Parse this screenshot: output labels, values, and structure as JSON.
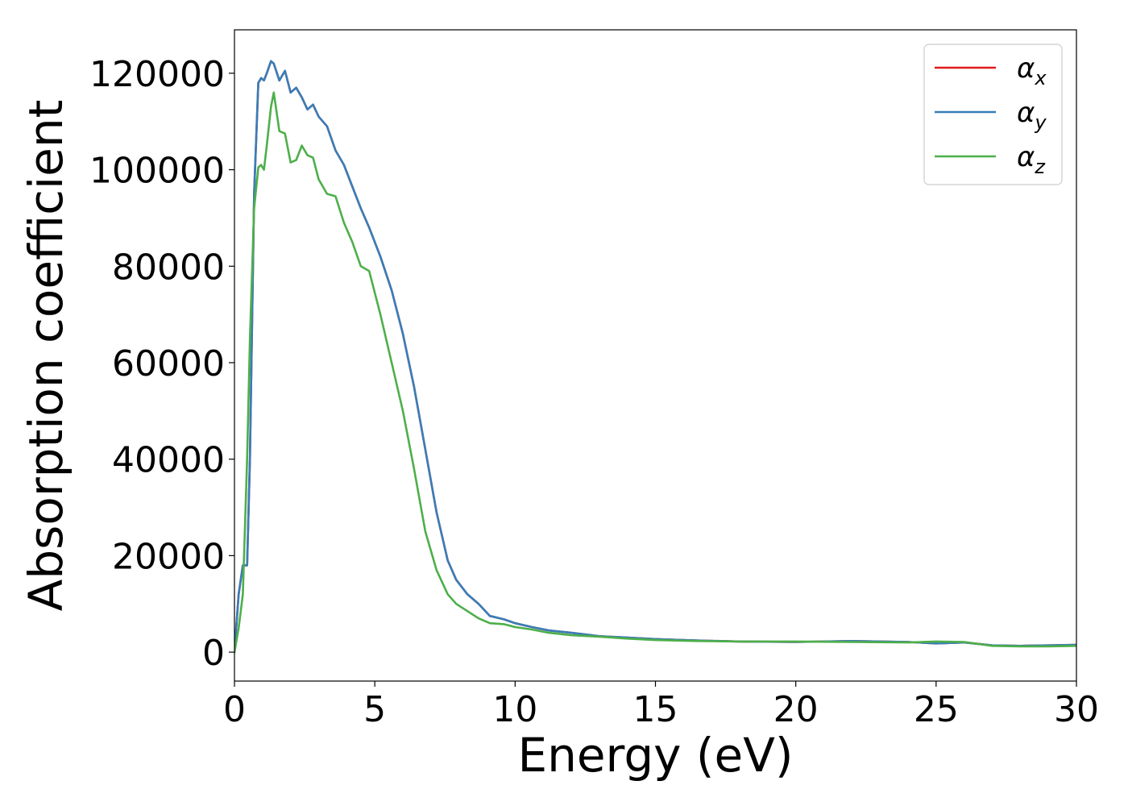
{
  "chart_data": {
    "type": "line",
    "title": "",
    "xlabel": "Energy (eV)",
    "ylabel": "Absorption coefficient",
    "xlim": [
      0,
      30
    ],
    "ylim": [
      -6000,
      129000
    ],
    "xticks": [
      0,
      5,
      10,
      15,
      20,
      25,
      30
    ],
    "xtick_labels": [
      "0",
      "5",
      "10",
      "15",
      "20",
      "25",
      "30"
    ],
    "yticks": [
      0,
      20000,
      40000,
      60000,
      80000,
      100000,
      120000
    ],
    "ytick_labels": [
      "0",
      "20000",
      "40000",
      "60000",
      "80000",
      "100000",
      "120000"
    ],
    "grid": false,
    "legend_position": "top-right",
    "series": [
      {
        "name": "α",
        "sub": "x",
        "color": "#e41a1c",
        "x": [
          0,
          0.15,
          0.3,
          0.45,
          0.55,
          0.7,
          0.85,
          0.95,
          1.05,
          1.15,
          1.3,
          1.4,
          1.6,
          1.8,
          2.0,
          2.2,
          2.4,
          2.6,
          2.8,
          3.0,
          3.3,
          3.6,
          3.9,
          4.2,
          4.5,
          4.8,
          5.2,
          5.6,
          6.0,
          6.4,
          6.8,
          7.2,
          7.6,
          7.9,
          8.3,
          8.7,
          9.1,
          9.6,
          10.0,
          10.6,
          11.2,
          12.0,
          13.0,
          14.0,
          15.0,
          16.5,
          18.0,
          20.0,
          22.0,
          24.0,
          25.0,
          26.0,
          27.0,
          28.0,
          29.0,
          30.0
        ],
        "y": [
          0,
          12000,
          18000,
          18000,
          40000,
          95000,
          118000,
          119000,
          118500,
          120000,
          122500,
          122000,
          118500,
          120500,
          116000,
          117000,
          115000,
          112500,
          113500,
          111000,
          109000,
          104000,
          101000,
          96500,
          92000,
          88000,
          82000,
          75000,
          66000,
          55000,
          42000,
          29000,
          19000,
          15000,
          12000,
          10000,
          7500,
          6800,
          6000,
          5200,
          4500,
          4000,
          3300,
          3000,
          2700,
          2400,
          2200,
          2100,
          2300,
          2100,
          1800,
          2000,
          1400,
          1300,
          1400,
          1500
        ]
      },
      {
        "name": "α",
        "sub": "y",
        "color": "#377eb8",
        "x": [
          0,
          0.15,
          0.3,
          0.45,
          0.55,
          0.7,
          0.85,
          0.95,
          1.05,
          1.15,
          1.3,
          1.4,
          1.6,
          1.8,
          2.0,
          2.2,
          2.4,
          2.6,
          2.8,
          3.0,
          3.3,
          3.6,
          3.9,
          4.2,
          4.5,
          4.8,
          5.2,
          5.6,
          6.0,
          6.4,
          6.8,
          7.2,
          7.6,
          7.9,
          8.3,
          8.7,
          9.1,
          9.6,
          10.0,
          10.6,
          11.2,
          12.0,
          13.0,
          14.0,
          15.0,
          16.5,
          18.0,
          20.0,
          22.0,
          24.0,
          25.0,
          26.0,
          27.0,
          28.0,
          29.0,
          30.0
        ],
        "y": [
          0,
          12000,
          18000,
          18000,
          40000,
          95000,
          118000,
          119000,
          118500,
          120000,
          122500,
          122000,
          118500,
          120500,
          116000,
          117000,
          115000,
          112500,
          113500,
          111000,
          109000,
          104000,
          101000,
          96500,
          92000,
          88000,
          82000,
          75000,
          66000,
          55000,
          42000,
          29000,
          19000,
          15000,
          12000,
          10000,
          7500,
          6800,
          6000,
          5200,
          4500,
          4000,
          3300,
          3000,
          2700,
          2400,
          2200,
          2100,
          2300,
          2100,
          1800,
          2000,
          1400,
          1300,
          1400,
          1500
        ]
      },
      {
        "name": "α",
        "sub": "z",
        "color": "#4daf4a",
        "x": [
          0,
          0.15,
          0.3,
          0.45,
          0.55,
          0.7,
          0.85,
          0.95,
          1.05,
          1.15,
          1.3,
          1.4,
          1.6,
          1.8,
          2.0,
          2.2,
          2.4,
          2.6,
          2.8,
          3.0,
          3.3,
          3.6,
          3.9,
          4.2,
          4.5,
          4.8,
          5.2,
          5.6,
          6.0,
          6.4,
          6.8,
          7.2,
          7.6,
          7.9,
          8.3,
          8.7,
          9.1,
          9.6,
          10.0,
          10.6,
          11.2,
          12.0,
          13.0,
          14.0,
          15.0,
          16.5,
          18.0,
          20.0,
          22.0,
          24.0,
          25.0,
          26.0,
          27.0,
          28.0,
          29.0,
          30.0
        ],
        "y": [
          0,
          5000,
          12000,
          40000,
          65000,
          92000,
          100500,
          101000,
          100000,
          105000,
          113000,
          116000,
          108000,
          107500,
          101500,
          102000,
          105000,
          103000,
          102500,
          98000,
          95000,
          94500,
          89000,
          85000,
          80000,
          79000,
          70000,
          60000,
          50000,
          38000,
          25000,
          17000,
          12000,
          10000,
          8500,
          7000,
          6000,
          5800,
          5200,
          4700,
          4000,
          3500,
          3200,
          2800,
          2500,
          2300,
          2200,
          2200,
          2100,
          2000,
          2200,
          2100,
          1300,
          1200,
          1200,
          1300
        ]
      }
    ]
  }
}
